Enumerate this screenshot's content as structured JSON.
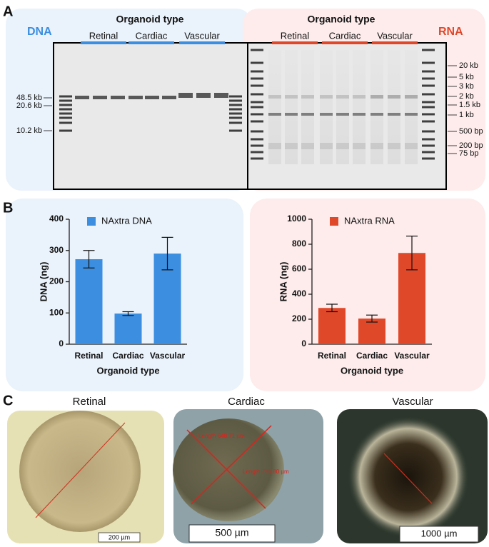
{
  "panel_labels": [
    "A",
    "B",
    "C"
  ],
  "gel": {
    "dna_label": "DNA",
    "rna_label": "RNA",
    "dna_header": {
      "title": "Organoid type",
      "groups": [
        "Retinal",
        "Cardiac",
        "Vascular"
      ]
    },
    "rna_header": {
      "title": "Organoid type",
      "groups": [
        "Retinal",
        "Cardiac",
        "Vascular"
      ]
    },
    "dna_markers": [
      "48.5 kb",
      "20.6 kb",
      "10.2 kb"
    ],
    "rna_markers": [
      "20 kb",
      "5 kb",
      "3 kb",
      "2 kb",
      "1.5 kb",
      "1 kb",
      "500 bp",
      "200 bp",
      "75 bp"
    ]
  },
  "chart_data": [
    {
      "type": "bar",
      "categories": [
        "Retinal",
        "Cardiac",
        "Vascular"
      ],
      "series": [
        {
          "name": "NAxtra DNA",
          "color": "#3b8ee0",
          "values": [
            272,
            98,
            290
          ],
          "errors": [
            28,
            6,
            52
          ]
        }
      ],
      "ylabel": "DNA (ng)",
      "xlabel": "Organoid type",
      "ylim": [
        0,
        400
      ],
      "yticks": [
        0,
        100,
        200,
        300,
        400
      ]
    },
    {
      "type": "bar",
      "categories": [
        "Retinal",
        "Cardiac",
        "Vascular"
      ],
      "series": [
        {
          "name": "NAxtra RNA",
          "color": "#e0482a",
          "values": [
            290,
            205,
            730
          ],
          "errors": [
            30,
            28,
            135
          ]
        }
      ],
      "ylabel": "RNA (ng)",
      "xlabel": "Organoid type",
      "ylim": [
        0,
        1000
      ],
      "yticks": [
        0,
        200,
        400,
        600,
        800,
        1000
      ]
    }
  ],
  "micrographs": [
    {
      "title": "Retinal",
      "scale_bar": "200 µm"
    },
    {
      "title": "Cardiac",
      "scale_bar": "500 µm",
      "measurements": [
        "Length 648.71 µm",
        "Length 781.80 µm"
      ]
    },
    {
      "title": "Vascular",
      "scale_bar": "1000 µm"
    }
  ]
}
